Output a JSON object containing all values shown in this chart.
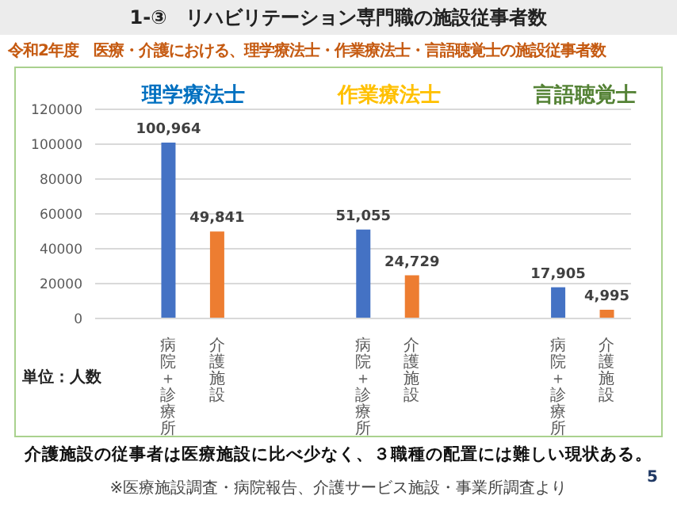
{
  "chart_data": {
    "type": "bar",
    "title": "1-③　リハビリテーション専門職の施設従事者数",
    "subtitle": "令和2年度　医療・介護における、理学療法士・作業療法士・言語聴覚士の施設従事者数",
    "categories": [
      null,
      "病院＋診療所",
      "介護施設",
      null,
      null,
      "病院＋診療所",
      "介護施設",
      null,
      null,
      "病院＋診療所",
      "介護施設"
    ],
    "values": [
      null,
      100964,
      49841,
      null,
      null,
      51055,
      24729,
      null,
      null,
      17905,
      4995
    ],
    "colors": [
      "#4472c4",
      "#4472c4",
      "#ed7d31",
      "#4472c4",
      "#4472c4",
      "#4472c4",
      "#ed7d31",
      "#4472c4",
      "#4472c4",
      "#4472c4",
      "#ed7d31"
    ],
    "ylim": [
      0,
      120000
    ],
    "yticks": [
      0,
      20000,
      40000,
      60000,
      80000,
      100000,
      120000
    ],
    "grid": "y",
    "value_labels": [
      null,
      "100,964",
      "49,841",
      null,
      null,
      "51,055",
      "24,729",
      null,
      null,
      "17,905",
      "4,995"
    ],
    "annotations": [
      "理学療法士",
      "作業療法士",
      "言語聴覚士",
      "単位：人数",
      "介護施設の従事者は医療施設に比べ少なく、３職種の配置には難しい現状ある。",
      "※医療施設調査・病院報告、介護サービス施設・事業所調査より",
      "5"
    ]
  }
}
